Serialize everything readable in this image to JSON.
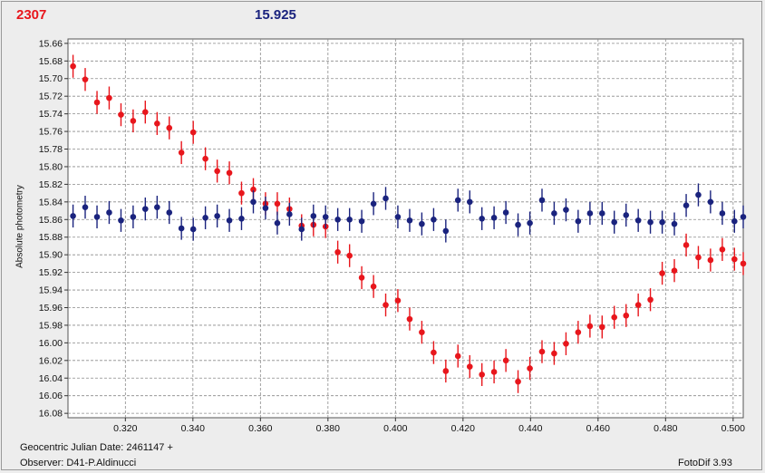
{
  "header": {
    "object_id": "2307",
    "magnitude": "15.925",
    "red_color": "#e8161c",
    "blue_color": "#1a237e"
  },
  "footer": {
    "julian_date": "Geocentric Julian Date: 2461147 +",
    "observer": "Observer: D41-P.Aldinucci",
    "software": "FotoDif 3.93"
  },
  "chart_data": {
    "type": "scatter",
    "ylabel": "Absolute photometry",
    "xlim": [
      0.303,
      0.503
    ],
    "ylim": [
      16.085,
      15.655
    ],
    "y_inverted": true,
    "grid": true,
    "x_ticks": [
      "0.320",
      "0.340",
      "0.360",
      "0.380",
      "0.400",
      "0.420",
      "0.440",
      "0.460",
      "0.480",
      "0.500"
    ],
    "y_ticks": [
      "15.66",
      "15.68",
      "15.70",
      "15.72",
      "15.74",
      "15.76",
      "15.78",
      "15.80",
      "15.82",
      "15.84",
      "15.86",
      "15.88",
      "15.90",
      "15.92",
      "15.94",
      "15.96",
      "15.98",
      "16.00",
      "16.02",
      "16.04",
      "16.06",
      "16.08"
    ],
    "series": [
      {
        "color": "#e8161c",
        "error": 0.013,
        "x": [
          0.3045,
          0.3081,
          0.3116,
          0.3152,
          0.3187,
          0.3223,
          0.3259,
          0.3294,
          0.333,
          0.3366,
          0.3401,
          0.3437,
          0.3472,
          0.3508,
          0.3544,
          0.3579,
          0.3615,
          0.365,
          0.3686,
          0.3722,
          0.3757,
          0.3793,
          0.3829,
          0.3864,
          0.39,
          0.3935,
          0.3971,
          0.4007,
          0.4042,
          0.4078,
          0.4113,
          0.4149,
          0.4185,
          0.422,
          0.4256,
          0.4292,
          0.4327,
          0.4363,
          0.4398,
          0.4434,
          0.447,
          0.4505,
          0.4541,
          0.4576,
          0.4612,
          0.4648,
          0.4683,
          0.4719,
          0.4755,
          0.479,
          0.4826,
          0.4861,
          0.4897,
          0.4933,
          0.4968,
          0.5004,
          0.503
        ],
        "y": [
          15.686,
          15.701,
          15.727,
          15.722,
          15.741,
          15.748,
          15.738,
          15.751,
          15.756,
          15.784,
          15.761,
          15.791,
          15.805,
          15.807,
          15.83,
          15.826,
          15.842,
          15.842,
          15.848,
          15.867,
          15.866,
          15.868,
          15.897,
          15.901,
          15.926,
          15.936,
          15.957,
          15.952,
          15.973,
          15.988,
          16.011,
          16.032,
          16.015,
          16.027,
          16.036,
          16.033,
          16.02,
          16.044,
          16.029,
          16.01,
          16.012,
          16.001,
          15.988,
          15.981,
          15.982,
          15.971,
          15.969,
          15.957,
          15.951,
          15.921,
          15.918,
          15.889,
          15.903,
          15.906,
          15.894,
          15.905,
          15.91
        ]
      },
      {
        "color": "#1a237e",
        "error": 0.013,
        "x": [
          0.3045,
          0.3081,
          0.3116,
          0.3152,
          0.3187,
          0.3223,
          0.3259,
          0.3294,
          0.333,
          0.3366,
          0.3401,
          0.3437,
          0.3472,
          0.3508,
          0.3544,
          0.3579,
          0.3615,
          0.365,
          0.3686,
          0.3722,
          0.3757,
          0.3793,
          0.3829,
          0.3864,
          0.39,
          0.3935,
          0.3971,
          0.4007,
          0.4042,
          0.4078,
          0.4113,
          0.4149,
          0.4185,
          0.422,
          0.4256,
          0.4292,
          0.4327,
          0.4363,
          0.4398,
          0.4434,
          0.447,
          0.4505,
          0.4541,
          0.4576,
          0.4612,
          0.4648,
          0.4683,
          0.4719,
          0.4755,
          0.479,
          0.4826,
          0.4861,
          0.4897,
          0.4933,
          0.4968,
          0.5004,
          0.503
        ],
        "y": [
          15.856,
          15.846,
          15.857,
          15.852,
          15.861,
          15.857,
          15.848,
          15.846,
          15.852,
          15.87,
          15.871,
          15.858,
          15.856,
          15.861,
          15.859,
          15.84,
          15.847,
          15.864,
          15.854,
          15.871,
          15.856,
          15.857,
          15.86,
          15.86,
          15.862,
          15.842,
          15.836,
          15.857,
          15.861,
          15.865,
          15.86,
          15.873,
          15.838,
          15.84,
          15.859,
          15.858,
          15.852,
          15.866,
          15.864,
          15.838,
          15.853,
          15.849,
          15.862,
          15.853,
          15.853,
          15.863,
          15.855,
          15.861,
          15.863,
          15.863,
          15.865,
          15.844,
          15.832,
          15.84,
          15.853,
          15.862,
          15.857
        ]
      }
    ]
  }
}
